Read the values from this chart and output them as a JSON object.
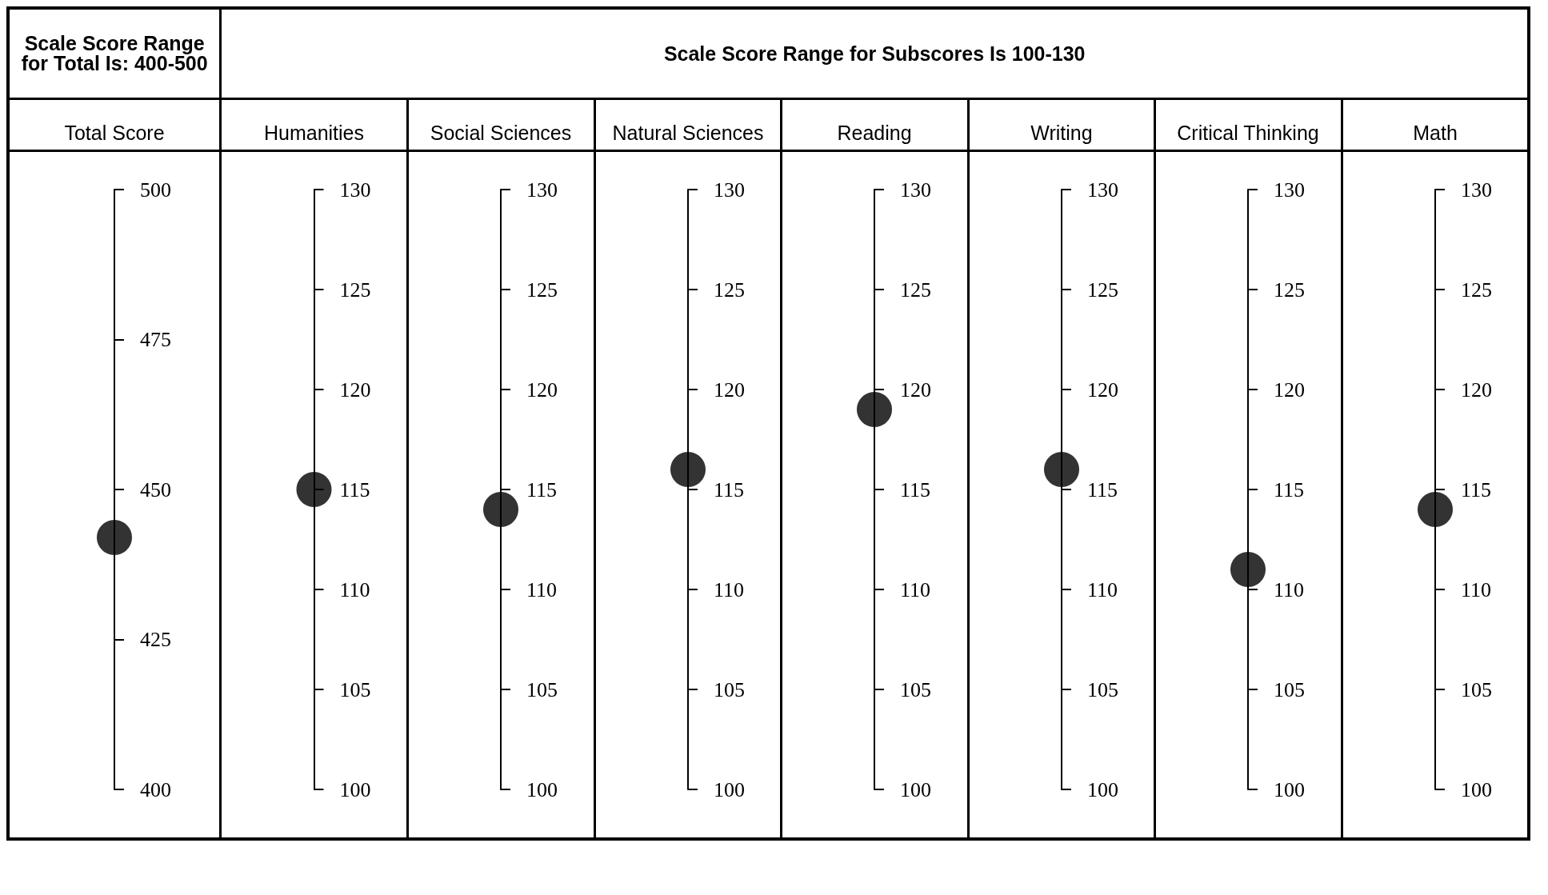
{
  "chart_data": [
    {
      "type": "scatter",
      "annotations": [
        "Scale Score Range for Total Is: 400-500"
      ],
      "categories": [
        "Total Score"
      ],
      "values": [
        442
      ],
      "color": "#000000",
      "marker": "circle",
      "ylim": [
        400,
        500
      ],
      "yticks": [
        400,
        425,
        450,
        475,
        500
      ]
    },
    {
      "type": "scatter",
      "annotations": [
        "Scale Score Range for Subscores Is 100-130"
      ],
      "categories": [
        "Humanities"
      ],
      "values": [
        115
      ],
      "color": "#000000",
      "marker": "circle",
      "ylim": [
        100,
        130
      ],
      "yticks": [
        100,
        105,
        110,
        115,
        120,
        125,
        130
      ]
    },
    {
      "type": "scatter",
      "categories": [
        "Social Sciences"
      ],
      "values": [
        114
      ],
      "color": "#000000",
      "marker": "circle",
      "ylim": [
        100,
        130
      ],
      "yticks": [
        100,
        105,
        110,
        115,
        120,
        125,
        130
      ]
    },
    {
      "type": "scatter",
      "categories": [
        "Natural Sciences"
      ],
      "values": [
        116
      ],
      "color": "#000000",
      "marker": "circle",
      "ylim": [
        100,
        130
      ],
      "yticks": [
        100,
        105,
        110,
        115,
        120,
        125,
        130
      ]
    },
    {
      "type": "scatter",
      "categories": [
        "Reading"
      ],
      "values": [
        119
      ],
      "color": "#000000",
      "marker": "circle",
      "ylim": [
        100,
        130
      ],
      "yticks": [
        100,
        105,
        110,
        115,
        120,
        125,
        130
      ]
    },
    {
      "type": "scatter",
      "categories": [
        "Writing"
      ],
      "values": [
        116
      ],
      "color": "#000000",
      "marker": "circle",
      "ylim": [
        100,
        130
      ],
      "yticks": [
        100,
        105,
        110,
        115,
        120,
        125,
        130
      ]
    },
    {
      "type": "scatter",
      "categories": [
        "Critical Thinking"
      ],
      "values": [
        111
      ],
      "color": "#000000",
      "marker": "circle",
      "ylim": [
        100,
        130
      ],
      "yticks": [
        100,
        105,
        110,
        115,
        120,
        125,
        130
      ]
    },
    {
      "type": "scatter",
      "categories": [
        "Math"
      ],
      "values": [
        114
      ],
      "color": "#000000",
      "marker": "circle",
      "ylim": [
        100,
        130
      ],
      "yticks": [
        100,
        105,
        110,
        115,
        120,
        125,
        130
      ]
    }
  ]
}
